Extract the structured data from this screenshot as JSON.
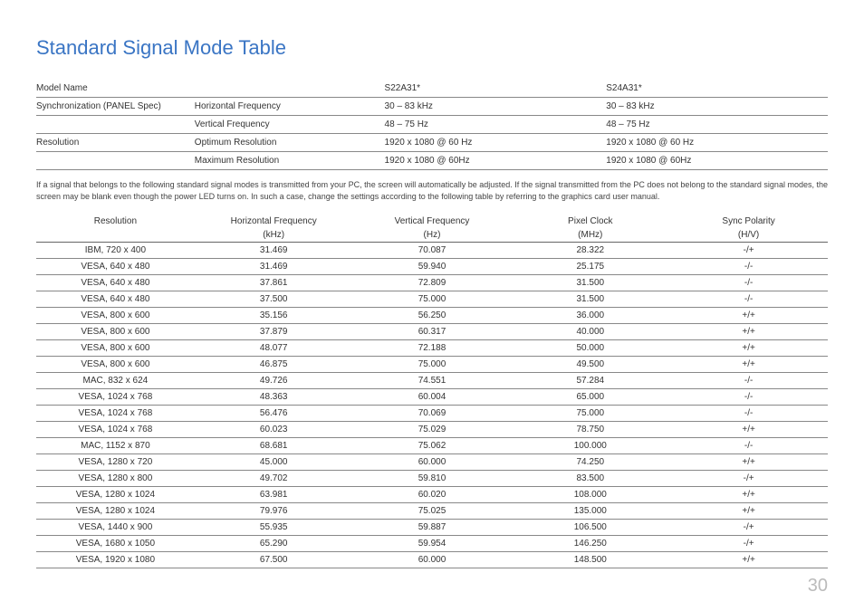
{
  "title": "Standard Signal Mode Table",
  "spec": {
    "headers": {
      "modelName": "Model Name",
      "m1": "S22A31*",
      "m2": "S24A31*"
    },
    "rows": [
      {
        "cat": "Synchronization (PANEL Spec)",
        "label": "Horizontal Frequency",
        "v1": "30 – 83 kHz",
        "v2": "30 – 83 kHz"
      },
      {
        "cat": "",
        "label": "Vertical Frequency",
        "v1": "48 – 75 Hz",
        "v2": "48 – 75 Hz"
      },
      {
        "cat": "Resolution",
        "label": "Optimum Resolution",
        "v1": "1920 x 1080 @ 60 Hz",
        "v2": "1920 x 1080 @ 60 Hz"
      },
      {
        "cat": "",
        "label": "Maximum Resolution",
        "v1": "1920 x 1080 @ 60Hz",
        "v2": "1920 x 1080 @ 60Hz"
      }
    ]
  },
  "note": "If a signal that belongs to the following standard signal modes is transmitted from your PC, the screen will automatically be adjusted. If the signal transmitted from the PC does not belong to the standard signal modes, the screen may be blank even though the power LED turns on. In such a case, change the settings according to the following table by referring to the graphics card user manual.",
  "modes": {
    "columns": [
      {
        "l1": "Resolution",
        "l2": ""
      },
      {
        "l1": "Horizontal Frequency",
        "l2": "(kHz)"
      },
      {
        "l1": "Vertical Frequency",
        "l2": "(Hz)"
      },
      {
        "l1": "Pixel Clock",
        "l2": "(MHz)"
      },
      {
        "l1": "Sync Polarity",
        "l2": "(H/V)"
      }
    ],
    "rows": [
      [
        "IBM, 720 x 400",
        "31.469",
        "70.087",
        "28.322",
        "-/+"
      ],
      [
        "VESA, 640 x 480",
        "31.469",
        "59.940",
        "25.175",
        "-/-"
      ],
      [
        "VESA, 640 x 480",
        "37.861",
        "72.809",
        "31.500",
        "-/-"
      ],
      [
        "VESA, 640 x 480",
        "37.500",
        "75.000",
        "31.500",
        "-/-"
      ],
      [
        "VESA, 800 x 600",
        "35.156",
        "56.250",
        "36.000",
        "+/+"
      ],
      [
        "VESA, 800 x 600",
        "37.879",
        "60.317",
        "40.000",
        "+/+"
      ],
      [
        "VESA, 800 x 600",
        "48.077",
        "72.188",
        "50.000",
        "+/+"
      ],
      [
        "VESA, 800 x 600",
        "46.875",
        "75.000",
        "49.500",
        "+/+"
      ],
      [
        "MAC, 832 x 624",
        "49.726",
        "74.551",
        "57.284",
        "-/-"
      ],
      [
        "VESA, 1024 x 768",
        "48.363",
        "60.004",
        "65.000",
        "-/-"
      ],
      [
        "VESA, 1024 x 768",
        "56.476",
        "70.069",
        "75.000",
        "-/-"
      ],
      [
        "VESA, 1024 x 768",
        "60.023",
        "75.029",
        "78.750",
        "+/+"
      ],
      [
        "MAC, 1152 x 870",
        "68.681",
        "75.062",
        "100.000",
        "-/-"
      ],
      [
        "VESA, 1280 x 720",
        "45.000",
        "60.000",
        "74.250",
        "+/+"
      ],
      [
        "VESA, 1280 x 800",
        "49.702",
        "59.810",
        "83.500",
        "-/+"
      ],
      [
        "VESA, 1280 x 1024",
        "63.981",
        "60.020",
        "108.000",
        "+/+"
      ],
      [
        "VESA, 1280 x 1024",
        "79.976",
        "75.025",
        "135.000",
        "+/+"
      ],
      [
        "VESA, 1440 x 900",
        "55.935",
        "59.887",
        "106.500",
        "-/+"
      ],
      [
        "VESA, 1680 x 1050",
        "65.290",
        "59.954",
        "146.250",
        "-/+"
      ],
      [
        "VESA, 1920 x 1080",
        "67.500",
        "60.000",
        "148.500",
        "+/+"
      ]
    ]
  },
  "page": "30"
}
